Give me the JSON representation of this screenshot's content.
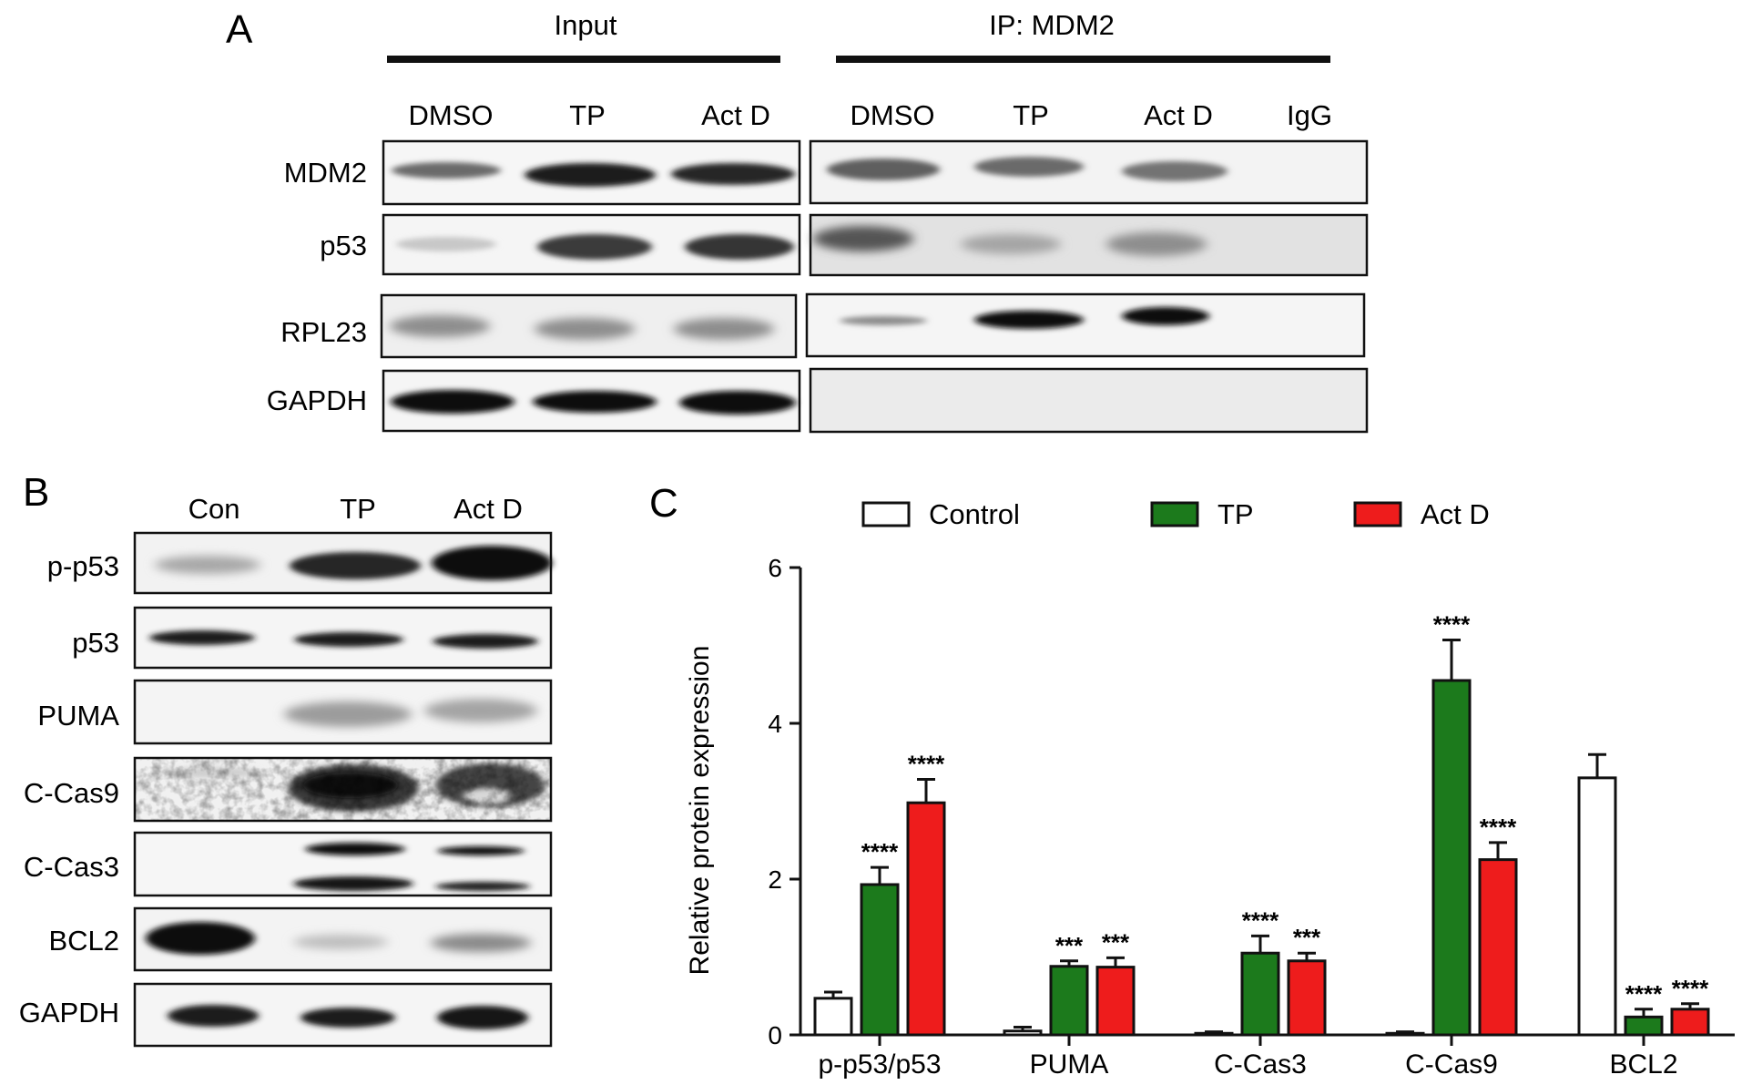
{
  "figure": {
    "panel_a": {
      "letter": "A",
      "group_input": "Input",
      "group_ip": "IP: MDM2",
      "lanes_input": [
        "DMSO",
        "TP",
        "Act D"
      ],
      "lanes_ip": [
        "DMSO",
        "TP",
        "Act D",
        "IgG"
      ],
      "rows": [
        "MDM2",
        "p53",
        "RPL23",
        "GAPDH"
      ]
    },
    "panel_b": {
      "letter": "B",
      "lanes": [
        "Con",
        "TP",
        "Act D"
      ],
      "rows": [
        "p-p53",
        "p53",
        "PUMA",
        "C-Cas9",
        "C-Cas3",
        "BCL2",
        "GAPDH"
      ]
    },
    "panel_c": {
      "letter": "C"
    }
  },
  "chart_data": {
    "type": "bar",
    "ylabel": "Relative protein expression",
    "ylim": [
      0,
      6
    ],
    "yticks": [
      "0",
      "2",
      "4",
      "6"
    ],
    "categories": [
      "p-p53/p53",
      "PUMA",
      "C-Cas3",
      "C-Cas9",
      "BCL2"
    ],
    "legend_position": "top",
    "series": [
      {
        "name": "Control",
        "color": "#ffffff",
        "values": [
          0.47,
          0.05,
          0.02,
          0.02,
          3.3
        ],
        "errors": [
          0.08,
          0.05,
          0.02,
          0.02,
          0.3
        ],
        "significance": [
          "",
          "",
          "",
          "",
          ""
        ]
      },
      {
        "name": "TP",
        "color": "#1c7a1c",
        "values": [
          1.93,
          0.88,
          1.05,
          4.55,
          0.23
        ],
        "errors": [
          0.22,
          0.07,
          0.22,
          0.52,
          0.1
        ],
        "significance": [
          "****",
          "***",
          "****",
          "****",
          "****"
        ]
      },
      {
        "name": "Act D",
        "color": "#ee1c1c",
        "values": [
          2.98,
          0.87,
          0.95,
          2.25,
          0.33
        ],
        "errors": [
          0.3,
          0.12,
          0.1,
          0.22,
          0.07
        ],
        "significance": [
          "****",
          "***",
          "***",
          "****",
          "****"
        ]
      }
    ]
  }
}
